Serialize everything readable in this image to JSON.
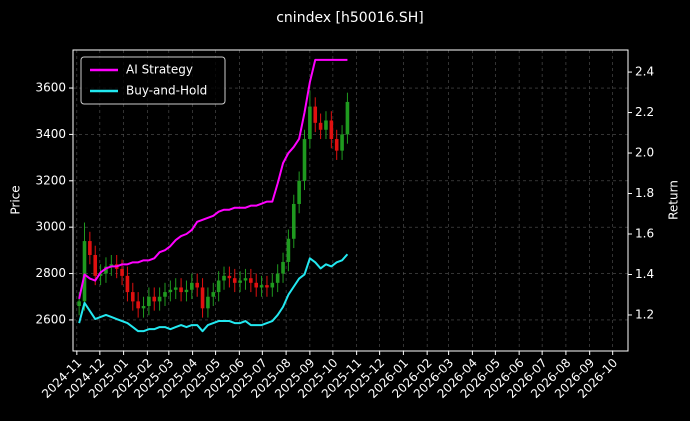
{
  "chart_data": {
    "type": "candlestick",
    "title": "cnindex [h50016.SH]",
    "y_label": "Price",
    "y2_label": "Return",
    "x": [
      3,
      10,
      17,
      24,
      31,
      38,
      45,
      52,
      59,
      66,
      73,
      80,
      87,
      94,
      101,
      108,
      115,
      122,
      129,
      136,
      143,
      150,
      157,
      164,
      171,
      178,
      185,
      192,
      199,
      206,
      213,
      220,
      227,
      234,
      241,
      248,
      255,
      262,
      269,
      276,
      283,
      290,
      297,
      304,
      311,
      318,
      325,
      332,
      339,
      346,
      353
    ],
    "open": [
      2660,
      2680,
      2940,
      2880,
      2790,
      2800,
      2830,
      2840,
      2820,
      2790,
      2720,
      2680,
      2650,
      2660,
      2700,
      2680,
      2700,
      2720,
      2730,
      2740,
      2720,
      2730,
      2760,
      2740,
      2650,
      2700,
      2720,
      2770,
      2790,
      2780,
      2760,
      2770,
      2780,
      2760,
      2740,
      2750,
      2740,
      2760,
      2800,
      2850,
      2950,
      3100,
      3200,
      3380,
      3520,
      3450,
      3420,
      3460,
      3380,
      3330,
      3400
    ],
    "high": [
      2720,
      3020,
      2980,
      2920,
      2840,
      2870,
      2880,
      2880,
      2860,
      2830,
      2760,
      2720,
      2700,
      2740,
      2740,
      2740,
      2760,
      2770,
      2780,
      2780,
      2770,
      2800,
      2800,
      2780,
      2740,
      2760,
      2810,
      2830,
      2830,
      2820,
      2810,
      2820,
      2820,
      2800,
      2790,
      2790,
      2800,
      2840,
      2890,
      2990,
      3140,
      3240,
      3420,
      3590,
      3560,
      3490,
      3500,
      3500,
      3420,
      3440,
      3580
    ],
    "low": [
      2620,
      2640,
      2840,
      2750,
      2750,
      2760,
      2790,
      2780,
      2750,
      2680,
      2640,
      2610,
      2610,
      2620,
      2640,
      2640,
      2660,
      2680,
      2690,
      2680,
      2680,
      2690,
      2700,
      2610,
      2610,
      2660,
      2680,
      2730,
      2740,
      2720,
      2720,
      2730,
      2720,
      2700,
      2700,
      2700,
      2700,
      2720,
      2760,
      2810,
      2910,
      3060,
      3160,
      3340,
      3410,
      3380,
      3380,
      3340,
      3290,
      3290,
      3360
    ],
    "close": [
      2680,
      2940,
      2880,
      2790,
      2800,
      2830,
      2840,
      2820,
      2790,
      2720,
      2680,
      2650,
      2660,
      2700,
      2680,
      2700,
      2720,
      2730,
      2740,
      2720,
      2730,
      2760,
      2740,
      2650,
      2700,
      2720,
      2770,
      2790,
      2780,
      2760,
      2770,
      2780,
      2760,
      2740,
      2750,
      2740,
      2760,
      2800,
      2850,
      2950,
      3100,
      3200,
      3380,
      3520,
      3450,
      3420,
      3460,
      3380,
      3330,
      3400,
      3540
    ],
    "up_color": "#1f9a1f",
    "down_color": "#e01010",
    "series": [
      {
        "name": "AI Strategy",
        "color": "#ff00ff",
        "axis": "y2",
        "values": [
          1.28,
          1.4,
          1.38,
          1.37,
          1.41,
          1.43,
          1.44,
          1.44,
          1.45,
          1.45,
          1.46,
          1.46,
          1.47,
          1.47,
          1.48,
          1.51,
          1.52,
          1.54,
          1.57,
          1.59,
          1.6,
          1.62,
          1.66,
          1.67,
          1.68,
          1.69,
          1.71,
          1.72,
          1.72,
          1.73,
          1.73,
          1.73,
          1.74,
          1.74,
          1.75,
          1.76,
          1.76,
          1.85,
          1.95,
          2.0,
          2.03,
          2.07,
          2.2,
          2.35,
          2.46,
          2.46,
          2.46,
          2.46,
          2.46,
          2.46,
          2.46
        ]
      },
      {
        "name": "Buy-and-Hold",
        "color": "#22e8f0",
        "axis": "y2",
        "values": [
          1.16,
          1.26,
          1.22,
          1.18,
          1.19,
          1.2,
          1.19,
          1.18,
          1.17,
          1.16,
          1.14,
          1.12,
          1.12,
          1.13,
          1.13,
          1.14,
          1.14,
          1.13,
          1.14,
          1.15,
          1.14,
          1.15,
          1.15,
          1.12,
          1.15,
          1.16,
          1.17,
          1.17,
          1.17,
          1.16,
          1.16,
          1.17,
          1.15,
          1.15,
          1.15,
          1.16,
          1.17,
          1.2,
          1.24,
          1.3,
          1.34,
          1.38,
          1.4,
          1.48,
          1.46,
          1.43,
          1.45,
          1.44,
          1.46,
          1.47,
          1.5
        ]
      }
    ],
    "xlim": [
      -5,
      719
    ],
    "xticks": [
      {
        "value": 0,
        "label": "2024-11"
      },
      {
        "value": 30,
        "label": "2024-12"
      },
      {
        "value": 61,
        "label": "2025-01"
      },
      {
        "value": 92,
        "label": "2025-02"
      },
      {
        "value": 120,
        "label": "2025-03"
      },
      {
        "value": 151,
        "label": "2025-04"
      },
      {
        "value": 181,
        "label": "2025-05"
      },
      {
        "value": 212,
        "label": "2025-06"
      },
      {
        "value": 242,
        "label": "2025-07"
      },
      {
        "value": 273,
        "label": "2025-08"
      },
      {
        "value": 304,
        "label": "2025-09"
      },
      {
        "value": 334,
        "label": "2025-10"
      },
      {
        "value": 365,
        "label": "2025-11"
      },
      {
        "value": 395,
        "label": "2025-12"
      },
      {
        "value": 426,
        "label": "2026-01"
      },
      {
        "value": 457,
        "label": "2026-02"
      },
      {
        "value": 485,
        "label": "2026-03"
      },
      {
        "value": 516,
        "label": "2026-04"
      },
      {
        "value": 546,
        "label": "2026-05"
      },
      {
        "value": 577,
        "label": "2026-06"
      },
      {
        "value": 607,
        "label": "2026-07"
      },
      {
        "value": 638,
        "label": "2026-08"
      },
      {
        "value": 669,
        "label": "2026-09"
      },
      {
        "value": 699,
        "label": "2026-10"
      }
    ],
    "ylim": [
      2466,
      3764
    ],
    "yticks": [
      2600,
      2800,
      3000,
      3200,
      3400,
      3600
    ],
    "y2lim": [
      1.022,
      2.509
    ],
    "y2ticks": [
      1.2,
      1.4,
      1.6,
      1.8,
      {
        "value": 2,
        "label": "2.0"
      },
      2.2,
      2.4
    ],
    "grid": true,
    "legend": "upper left"
  }
}
